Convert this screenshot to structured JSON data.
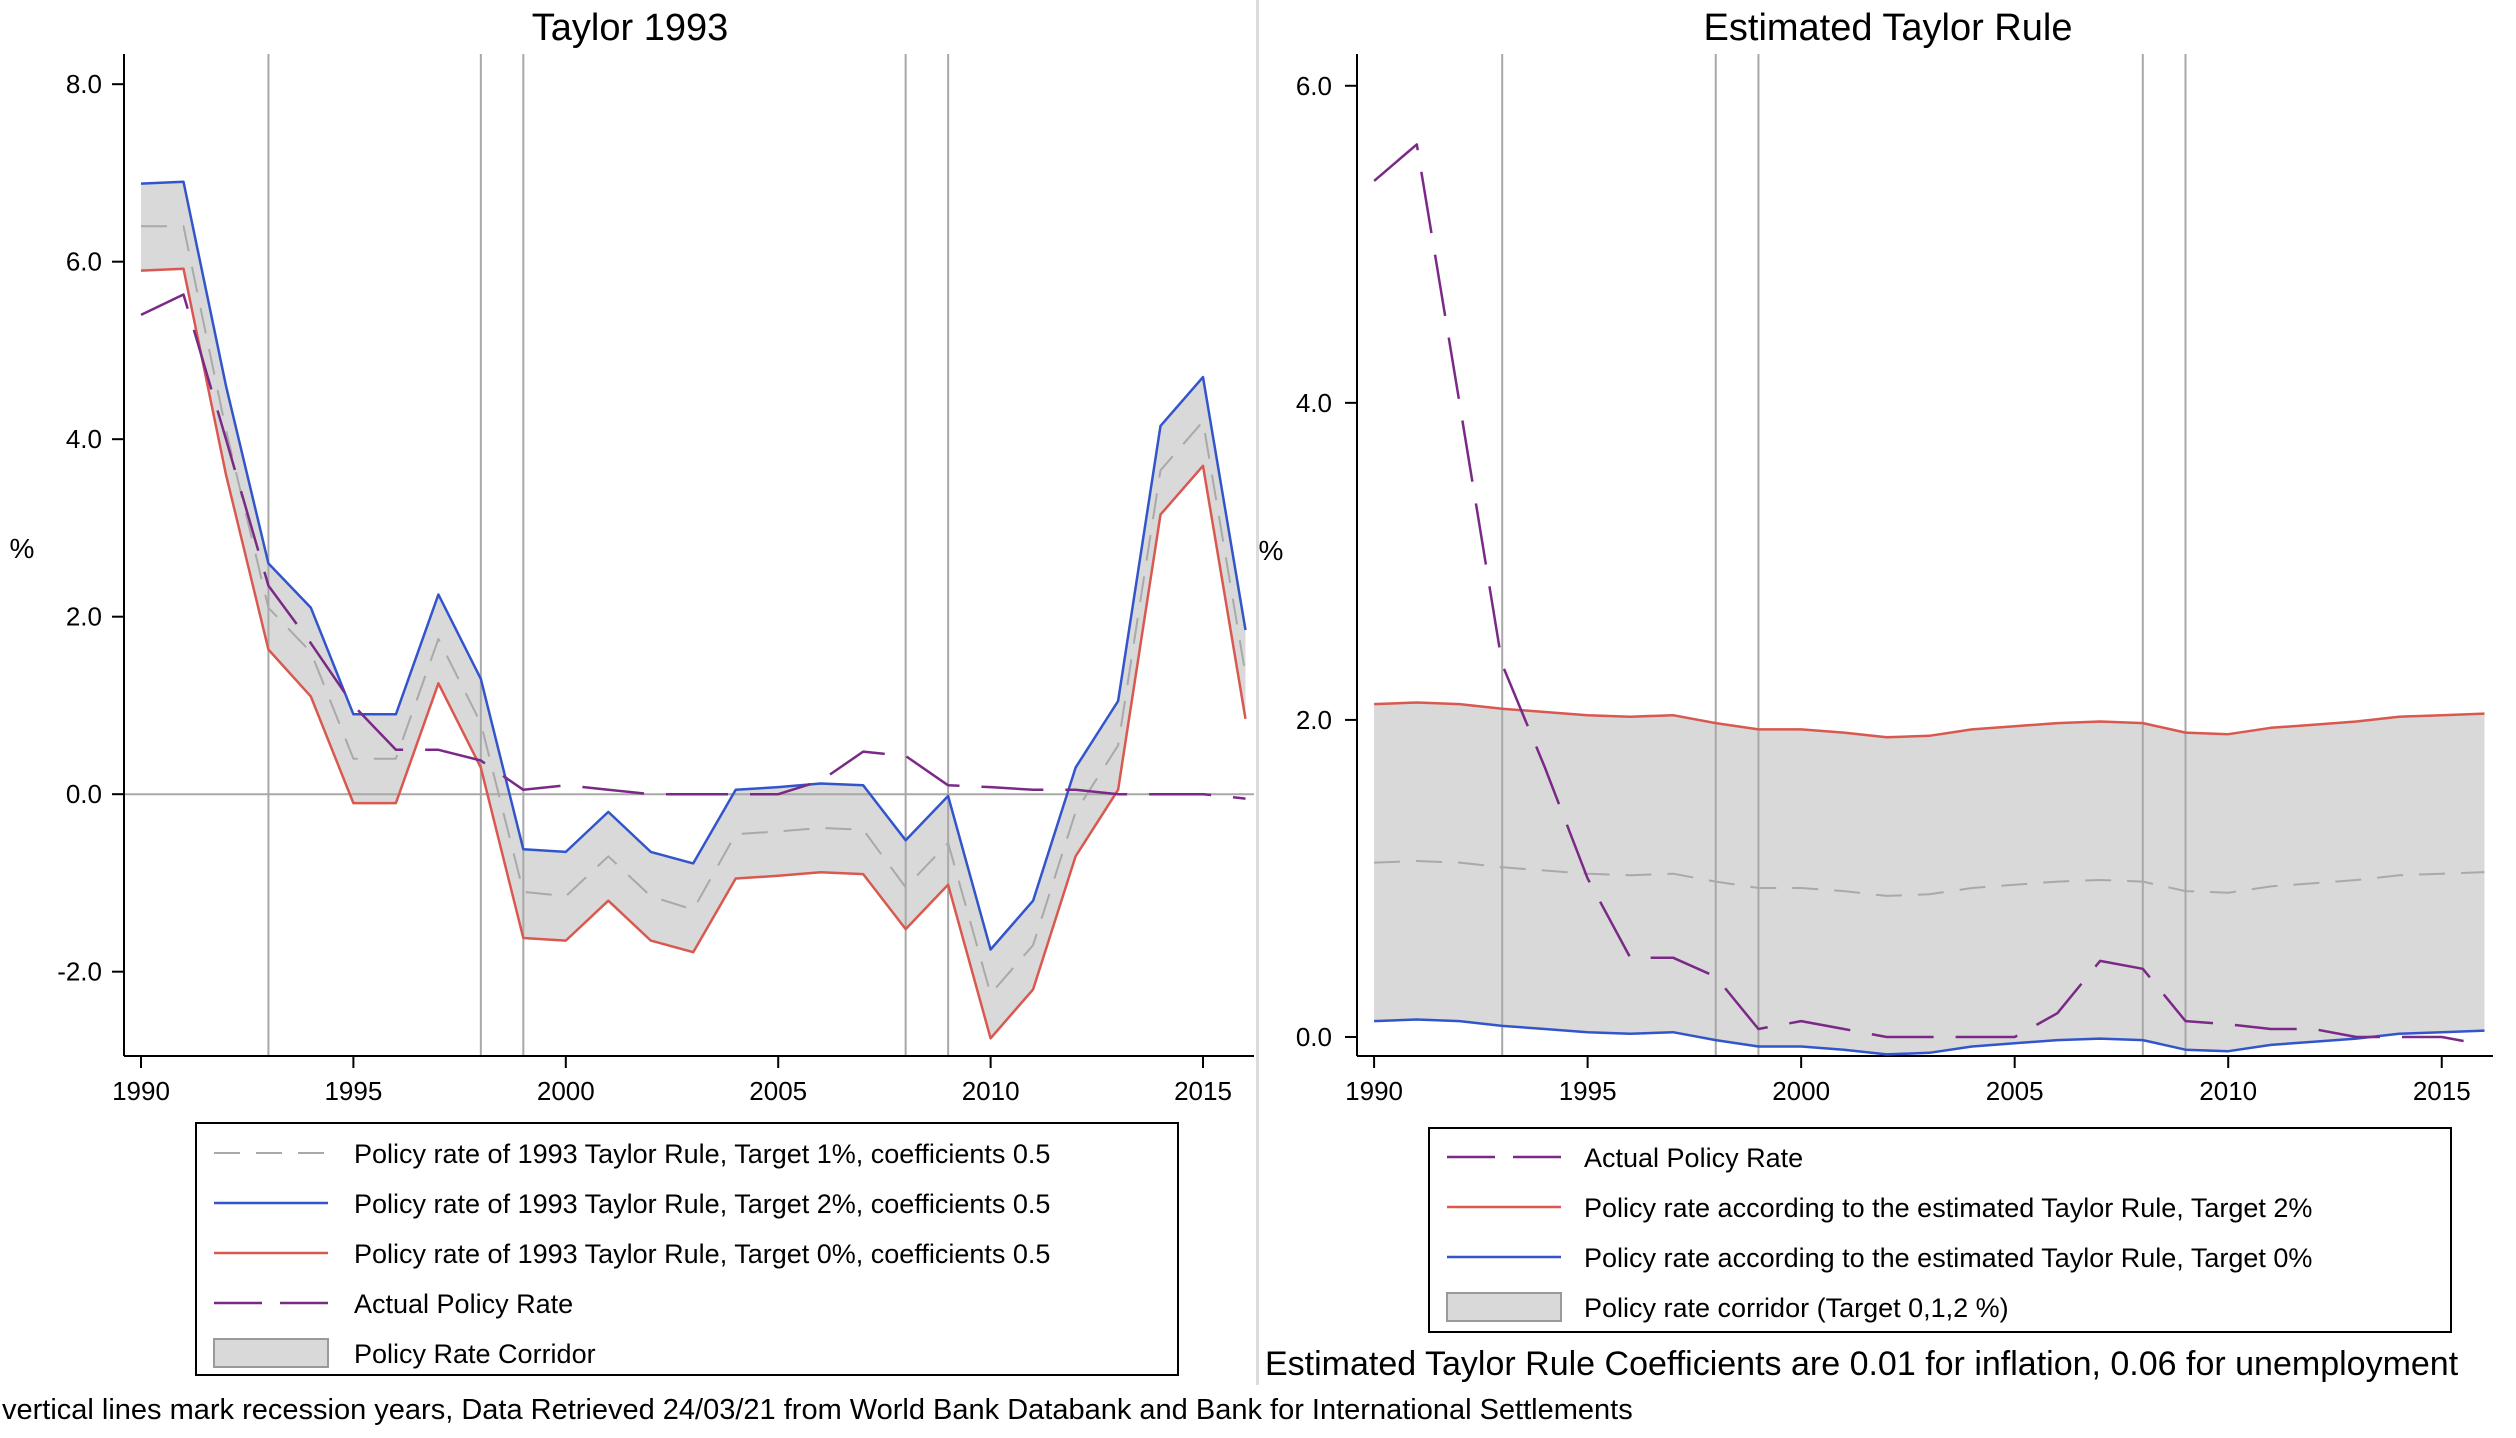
{
  "footnote": "vertical lines mark recession years, Data Retrieved 24/03/21 from World Bank Databank and Bank for International Settlements",
  "colors": {
    "target1": "#a9a9a9",
    "target2": "#3355cc",
    "target0": "#d9584f",
    "actual": "#7a2a86",
    "corridor_fill": "#d9d9d9",
    "recession_line": "#a8a8a8",
    "zero_line": "#a8a8a8"
  },
  "chart_data": [
    {
      "type": "line",
      "title": "Taylor 1993",
      "ylabel": "%",
      "xlabel": "",
      "xlim": [
        1989.6,
        2016.2
      ],
      "ylim": [
        -2.95,
        8.25
      ],
      "xticks": [
        1990,
        1995,
        2000,
        2005,
        2010,
        2015
      ],
      "xtick_labels": [
        "1990",
        "1995",
        "2000",
        "2005",
        "2010",
        "2015"
      ],
      "yticks": [
        -2,
        0,
        2,
        4,
        6,
        8
      ],
      "ytick_labels": [
        "-2.0",
        "0.0",
        "2.0",
        "4.0",
        "6.0",
        "8.0"
      ],
      "recession_years": [
        1993,
        1998,
        1999,
        2008,
        2009
      ],
      "zero_line": true,
      "x": [
        1990,
        1991,
        1992,
        1993,
        1994,
        1995,
        1996,
        1997,
        1998,
        1999,
        2000,
        2001,
        2002,
        2003,
        2004,
        2005,
        2006,
        2007,
        2008,
        2009,
        2010,
        2011,
        2012,
        2013,
        2014,
        2015,
        2016
      ],
      "series": [
        {
          "name": "Policy rate of 1993 Taylor Rule, Target 1%, coefficients 0.5",
          "style": "dashed",
          "color_key": "target1",
          "values": [
            6.4,
            6.4,
            4.1,
            2.1,
            1.6,
            0.4,
            0.4,
            1.75,
            0.8,
            -1.1,
            -1.15,
            -0.7,
            -1.15,
            -1.3,
            -0.45,
            -0.42,
            -0.38,
            -0.4,
            -1.05,
            -0.55,
            -2.25,
            -1.7,
            -0.2,
            0.55,
            3.65,
            4.2,
            1.35
          ]
        },
        {
          "name": "Policy rate of 1993 Taylor Rule, Target 2%, coefficients 0.5",
          "style": "solid",
          "color_key": "target2",
          "values": [
            6.88,
            6.9,
            4.6,
            2.6,
            2.1,
            0.9,
            0.9,
            2.25,
            1.3,
            -0.62,
            -0.65,
            -0.2,
            -0.65,
            -0.78,
            0.05,
            0.08,
            0.12,
            0.1,
            -0.52,
            -0.02,
            -1.75,
            -1.2,
            0.3,
            1.05,
            4.15,
            4.7,
            1.85
          ]
        },
        {
          "name": "Policy rate of 1993 Taylor Rule, Target 0%, coefficients 0.5",
          "style": "solid",
          "color_key": "target0",
          "values": [
            5.9,
            5.92,
            3.6,
            1.63,
            1.1,
            -0.1,
            -0.1,
            1.25,
            0.3,
            -1.62,
            -1.65,
            -1.2,
            -1.65,
            -1.78,
            -0.95,
            -0.92,
            -0.88,
            -0.9,
            -1.52,
            -1.02,
            -2.75,
            -2.2,
            -0.7,
            0.05,
            3.15,
            3.7,
            0.85
          ]
        },
        {
          "name": "Actual Policy Rate",
          "style": "longdash",
          "color_key": "actual",
          "values": [
            5.4,
            5.63,
            4.0,
            2.35,
            1.7,
            1.0,
            0.5,
            0.5,
            0.38,
            0.05,
            0.1,
            0.05,
            0.0,
            0.0,
            0.0,
            0.0,
            0.15,
            0.48,
            0.43,
            0.1,
            0.08,
            0.05,
            0.05,
            0.0,
            0.0,
            0.0,
            -0.05
          ]
        }
      ],
      "corridor": {
        "name": "Policy Rate Corridor",
        "upper_series": 1,
        "lower_series": 2
      },
      "legend": {
        "placement": "bottom",
        "entries": [
          {
            "label": "Policy rate of 1993 Taylor Rule, Target 1%, coefficients 0.5",
            "kind": "dashed",
            "color_key": "target1"
          },
          {
            "label": "Policy rate of 1993 Taylor Rule, Target 2%, coefficients 0.5",
            "kind": "solid",
            "color_key": "target2"
          },
          {
            "label": "Policy rate of 1993 Taylor Rule, Target 0%, coefficients 0.5",
            "kind": "solid",
            "color_key": "target0"
          },
          {
            "label": "Actual Policy Rate",
            "kind": "longdash",
            "color_key": "actual"
          },
          {
            "label": "Policy Rate Corridor",
            "kind": "area",
            "color_key": "corridor_fill"
          }
        ]
      }
    },
    {
      "type": "line",
      "title": "Estimated Taylor Rule",
      "ylabel": "%",
      "xlabel": "",
      "xlim": [
        1989.6,
        2016.2
      ],
      "ylim": [
        -0.12,
        6.15
      ],
      "xticks": [
        1990,
        1995,
        2000,
        2005,
        2010,
        2015
      ],
      "xtick_labels": [
        "1990",
        "1995",
        "2000",
        "2005",
        "2010",
        "2015"
      ],
      "yticks": [
        0,
        2,
        4,
        6
      ],
      "ytick_labels": [
        "0.0",
        "2.0",
        "4.0",
        "6.0"
      ],
      "recession_years": [
        1993,
        1998,
        1999,
        2008,
        2009
      ],
      "zero_line": false,
      "x": [
        1990,
        1991,
        1992,
        1993,
        1994,
        1995,
        1996,
        1997,
        1998,
        1999,
        2000,
        2001,
        2002,
        2003,
        2004,
        2005,
        2006,
        2007,
        2008,
        2009,
        2010,
        2011,
        2012,
        2013,
        2014,
        2015,
        2016
      ],
      "series": [
        {
          "name": "Actual Policy Rate",
          "style": "longdash",
          "color_key": "actual",
          "values": [
            5.4,
            5.63,
            4.0,
            2.35,
            1.7,
            1.0,
            0.5,
            0.5,
            0.38,
            0.05,
            0.1,
            0.05,
            0.0,
            0.0,
            0.0,
            0.0,
            0.15,
            0.48,
            0.43,
            0.1,
            0.08,
            0.05,
            0.05,
            0.0,
            0.0,
            0.0,
            -0.05
          ]
        },
        {
          "name": "Policy rate according to the estimated Taylor Rule, Target 2%",
          "style": "solid",
          "color_key": "target0",
          "values": [
            2.1,
            2.11,
            2.1,
            2.07,
            2.05,
            2.03,
            2.02,
            2.03,
            1.98,
            1.94,
            1.94,
            1.92,
            1.89,
            1.9,
            1.94,
            1.96,
            1.98,
            1.99,
            1.98,
            1.92,
            1.91,
            1.95,
            1.97,
            1.99,
            2.02,
            2.03,
            2.04
          ]
        },
        {
          "name": "Policy rate according to the estimated Taylor Rule, Target 0%",
          "style": "solid",
          "color_key": "target2",
          "values": [
            0.1,
            0.11,
            0.1,
            0.07,
            0.05,
            0.03,
            0.02,
            0.03,
            -0.02,
            -0.06,
            -0.06,
            -0.08,
            -0.11,
            -0.1,
            -0.06,
            -0.04,
            -0.02,
            -0.01,
            -0.02,
            -0.08,
            -0.09,
            -0.05,
            -0.03,
            -0.01,
            0.02,
            0.03,
            0.04
          ]
        },
        {
          "name": "",
          "style": "dashed",
          "color_key": "target1",
          "values": [
            1.1,
            1.11,
            1.1,
            1.07,
            1.05,
            1.03,
            1.02,
            1.03,
            0.98,
            0.94,
            0.94,
            0.92,
            0.89,
            0.9,
            0.94,
            0.96,
            0.98,
            0.99,
            0.98,
            0.92,
            0.91,
            0.95,
            0.97,
            0.99,
            1.02,
            1.03,
            1.04
          ]
        }
      ],
      "corridor": {
        "name": "Policy rate corridor (Target 0,1,2 %)",
        "upper_series": 1,
        "lower_series": 2
      },
      "legend": {
        "placement": "bottom",
        "entries": [
          {
            "label": "Actual Policy Rate",
            "kind": "longdash",
            "color_key": "actual"
          },
          {
            "label": "Policy rate according to the estimated Taylor Rule, Target 2%",
            "kind": "solid",
            "color_key": "target0"
          },
          {
            "label": "Policy rate according to the estimated Taylor Rule, Target 0%",
            "kind": "solid",
            "color_key": "target2"
          },
          {
            "label": "Policy rate corridor (Target 0,1,2 %)",
            "kind": "area",
            "color_key": "corridor_fill"
          }
        ]
      },
      "annotation": "Estimated Taylor Rule Coefficients are 0.01 for inflation, 0.06 for unemployment"
    }
  ]
}
